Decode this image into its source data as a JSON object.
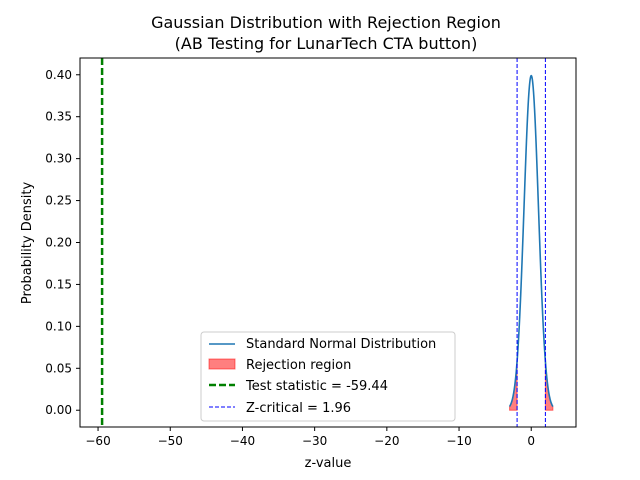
{
  "chart_data": {
    "type": "line",
    "title": "Gaussian Distribution with Rejection Region",
    "subtitle": "(AB Testing for LunarTech CTA button)",
    "xlabel": "z-value",
    "ylabel": "Probability Density",
    "xlim": [
      -62.5,
      6.2
    ],
    "ylim": [
      -0.02,
      0.42
    ],
    "xticks": [
      -60,
      -50,
      -40,
      -30,
      -20,
      -10,
      0
    ],
    "xtick_labels": [
      "−60",
      "−50",
      "−40",
      "−30",
      "−20",
      "−10",
      "0"
    ],
    "yticks": [
      0.0,
      0.05,
      0.1,
      0.15,
      0.2,
      0.25,
      0.3,
      0.35,
      0.4
    ],
    "ytick_labels": [
      "0.00",
      "0.05",
      "0.10",
      "0.15",
      "0.20",
      "0.25",
      "0.30",
      "0.35",
      "0.40"
    ],
    "grid": false,
    "curve": {
      "name": "Standard Normal Distribution",
      "x_range": [
        -3,
        3
      ],
      "mean": 0,
      "std": 1,
      "color": "#1f77b4"
    },
    "rejection_region": {
      "name": "Rejection region",
      "left": [
        -3,
        -1.96
      ],
      "right": [
        1.96,
        3
      ],
      "color": "#ff0000",
      "alpha": 0.5
    },
    "test_statistic": {
      "name": "Test statistic = -59.44",
      "value": -59.44,
      "color": "#008000"
    },
    "z_critical": {
      "name": "Z-critical = 1.96",
      "values": [
        -1.96,
        1.96
      ],
      "color": "#0000ff"
    },
    "legend_placement": "lower-center"
  }
}
